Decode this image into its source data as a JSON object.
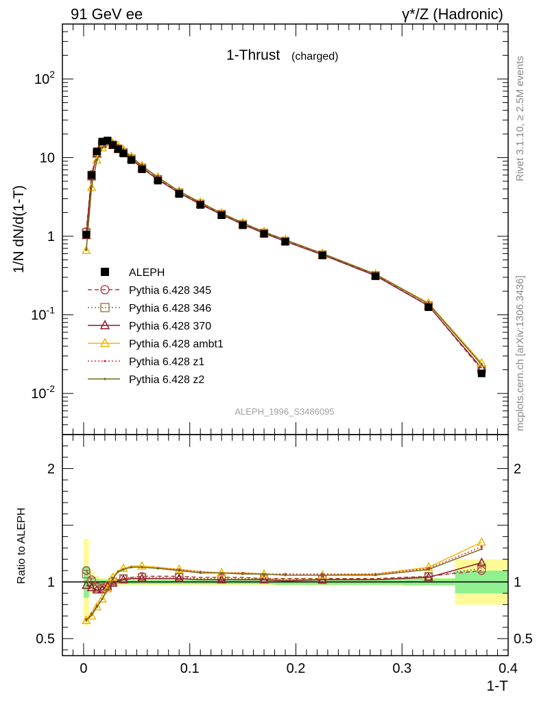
{
  "header": {
    "left": "91 GeV ee",
    "right": "γ*/Z (Hadronic)",
    "side_top": "Rivet 3.1.10, ≥ 2.5M events",
    "side_bottom": "mcplots.cern.ch [arXiv:1306.3436]"
  },
  "chart_data": [
    {
      "type": "line",
      "title": "1-Thrust",
      "subtitle": "(charged)",
      "ylabel": "1/N dN/d(1-T)",
      "yscale": "log",
      "ylim": [
        0.003,
        500
      ],
      "xlim": [
        -0.02,
        0.4
      ],
      "ytick_labels": [
        "10^-2",
        "10^-1",
        "1",
        "10",
        "10^2"
      ],
      "watermark": "ALEPH_1996_S3486095",
      "legend_position": "center-left",
      "x": [
        0.0025,
        0.0075,
        0.0125,
        0.0175,
        0.0225,
        0.0275,
        0.0325,
        0.0375,
        0.045,
        0.055,
        0.07,
        0.09,
        0.11,
        0.13,
        0.15,
        0.17,
        0.19,
        0.225,
        0.275,
        0.325,
        0.375
      ],
      "series": [
        {
          "name": "ALEPH",
          "color": "#000000",
          "marker": "square",
          "style": "points",
          "values": [
            1.05,
            6.0,
            12.0,
            16.0,
            16.5,
            14.5,
            12.8,
            11.3,
            9.3,
            7.1,
            5.1,
            3.45,
            2.5,
            1.85,
            1.38,
            1.07,
            0.85,
            0.57,
            0.31,
            0.125,
            0.018
          ]
        },
        {
          "name": "Pythia 6.428 345",
          "color": "#b5303c",
          "marker": "circle",
          "style": "dashed",
          "values": [
            1.15,
            6.1,
            11.5,
            15.2,
            16.0,
            14.6,
            13.1,
            11.7,
            9.7,
            7.45,
            5.35,
            3.6,
            2.6,
            1.92,
            1.43,
            1.1,
            0.87,
            0.585,
            0.318,
            0.131,
            0.02
          ]
        },
        {
          "name": "Pythia 6.428 346",
          "color": "#9c6b3c",
          "marker": "square-open",
          "style": "dotted",
          "values": [
            1.12,
            6.0,
            11.4,
            15.0,
            15.9,
            14.5,
            13.0,
            11.65,
            9.65,
            7.4,
            5.32,
            3.58,
            2.58,
            1.91,
            1.42,
            1.1,
            0.87,
            0.583,
            0.317,
            0.131,
            0.0202
          ]
        },
        {
          "name": "Pythia 6.428 370",
          "color": "#8c1a2e",
          "marker": "triangle",
          "style": "solid",
          "values": [
            1.02,
            5.7,
            11.1,
            14.9,
            15.8,
            14.4,
            12.9,
            11.6,
            9.6,
            7.35,
            5.25,
            3.55,
            2.55,
            1.88,
            1.41,
            1.09,
            0.86,
            0.58,
            0.315,
            0.13,
            0.021
          ]
        },
        {
          "name": "Pythia 6.428 ambt1",
          "color": "#f2b400",
          "marker": "triangle-open",
          "style": "solid",
          "values": [
            0.66,
            4.2,
            9.3,
            13.3,
            15.5,
            15.3,
            14.1,
            12.6,
            10.3,
            7.9,
            5.65,
            3.75,
            2.7,
            1.97,
            1.48,
            1.14,
            0.9,
            0.605,
            0.33,
            0.141,
            0.0244
          ]
        },
        {
          "name": "Pythia 6.428 z1",
          "color": "#e8262b",
          "marker": "dot",
          "style": "dotted",
          "values": [
            0.67,
            4.3,
            9.4,
            13.4,
            15.4,
            15.2,
            14.0,
            12.5,
            10.2,
            7.85,
            5.6,
            3.72,
            2.68,
            1.96,
            1.47,
            1.14,
            0.9,
            0.603,
            0.329,
            0.139,
            0.0236
          ]
        },
        {
          "name": "Pythia 6.428 z2",
          "color": "#6e6b1c",
          "marker": "dot",
          "style": "solid",
          "values": [
            0.67,
            4.25,
            9.35,
            13.35,
            15.4,
            15.2,
            14.0,
            12.5,
            10.2,
            7.85,
            5.6,
            3.72,
            2.68,
            1.96,
            1.47,
            1.13,
            0.9,
            0.602,
            0.328,
            0.138,
            0.0232
          ]
        }
      ]
    },
    {
      "type": "line",
      "ylabel": "Ratio to ALEPH",
      "xlabel": "1-T",
      "ylim": [
        0.35,
        2.3
      ],
      "xlim": [
        -0.02,
        0.4
      ],
      "ytick_labels": [
        "0.5",
        "1",
        "2"
      ],
      "xtick_labels": [
        "0",
        "0.1",
        "0.2",
        "0.3",
        "0.4"
      ],
      "uncertainty_bands": {
        "x_edges": [
          0,
          0.005,
          0.01,
          0.015,
          0.02,
          0.025,
          0.03,
          0.035,
          0.04,
          0.05,
          0.06,
          0.08,
          0.1,
          0.12,
          0.14,
          0.16,
          0.18,
          0.2,
          0.25,
          0.3,
          0.35,
          0.4
        ],
        "green_half": [
          0.14,
          0.04,
          0.025,
          0.02,
          0.02,
          0.02,
          0.02,
          0.02,
          0.02,
          0.02,
          0.02,
          0.02,
          0.02,
          0.02,
          0.02,
          0.02,
          0.025,
          0.025,
          0.025,
          0.03,
          0.1
        ],
        "yellow_half": [
          0.38,
          0.1,
          0.05,
          0.035,
          0.03,
          0.03,
          0.03,
          0.03,
          0.03,
          0.03,
          0.03,
          0.03,
          0.03,
          0.03,
          0.03,
          0.03,
          0.035,
          0.035,
          0.035,
          0.035,
          0.2
        ],
        "green_color": "#90f090",
        "yellow_color": "#fffa96"
      },
      "x": [
        0.0025,
        0.0075,
        0.0125,
        0.0175,
        0.0225,
        0.0275,
        0.0325,
        0.0375,
        0.045,
        0.055,
        0.07,
        0.09,
        0.11,
        0.13,
        0.15,
        0.17,
        0.19,
        0.225,
        0.275,
        0.325,
        0.375
      ],
      "series": [
        {
          "name": "Pythia 6.428 345",
          "values": [
            1.1,
            1.02,
            0.96,
            0.95,
            0.97,
            1.01,
            1.02,
            1.03,
            1.04,
            1.05,
            1.05,
            1.05,
            1.04,
            1.04,
            1.04,
            1.03,
            1.03,
            1.03,
            1.03,
            1.05,
            1.1
          ]
        },
        {
          "name": "Pythia 6.428 346",
          "values": [
            1.07,
            1.0,
            0.95,
            0.94,
            0.96,
            1.0,
            1.02,
            1.03,
            1.04,
            1.04,
            1.04,
            1.04,
            1.03,
            1.03,
            1.03,
            1.03,
            1.02,
            1.02,
            1.02,
            1.05,
            1.12
          ]
        },
        {
          "name": "Pythia 6.428 370",
          "values": [
            0.97,
            0.95,
            0.93,
            0.93,
            0.96,
            0.99,
            1.01,
            1.02,
            1.03,
            1.03,
            1.03,
            1.03,
            1.02,
            1.02,
            1.02,
            1.02,
            1.01,
            1.02,
            1.02,
            1.04,
            1.17
          ]
        },
        {
          "name": "Pythia 6.428 ambt1",
          "values": [
            0.66,
            0.7,
            0.78,
            0.85,
            0.94,
            1.04,
            1.1,
            1.12,
            1.14,
            1.14,
            1.13,
            1.11,
            1.09,
            1.08,
            1.08,
            1.07,
            1.06,
            1.06,
            1.07,
            1.13,
            1.35
          ]
        },
        {
          "name": "Pythia 6.428 z1",
          "values": [
            0.67,
            0.72,
            0.79,
            0.85,
            0.93,
            1.03,
            1.09,
            1.11,
            1.13,
            1.13,
            1.12,
            1.11,
            1.09,
            1.08,
            1.08,
            1.07,
            1.07,
            1.07,
            1.07,
            1.12,
            1.31
          ]
        },
        {
          "name": "Pythia 6.428 z2",
          "values": [
            0.66,
            0.71,
            0.78,
            0.85,
            0.93,
            1.03,
            1.09,
            1.11,
            1.13,
            1.13,
            1.12,
            1.1,
            1.08,
            1.08,
            1.07,
            1.07,
            1.06,
            1.06,
            1.06,
            1.11,
            1.29
          ]
        }
      ]
    }
  ]
}
